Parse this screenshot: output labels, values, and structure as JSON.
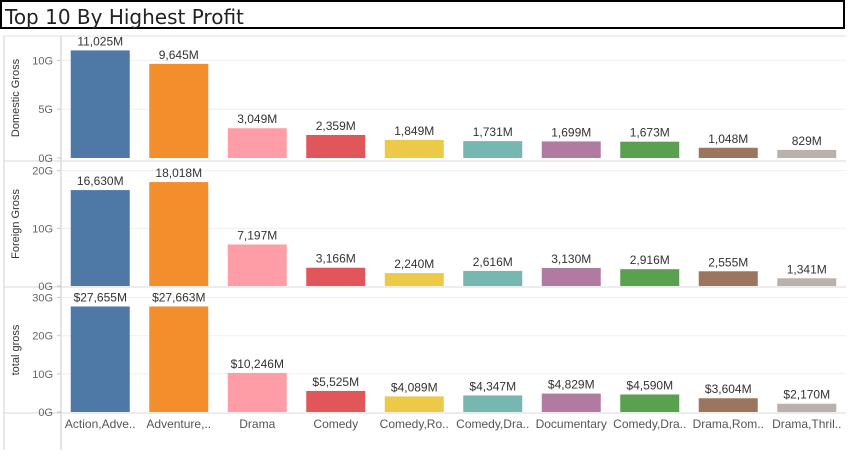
{
  "title": "Top 10 By Highest Profit",
  "chart_data": {
    "type": "bar",
    "categories": [
      "Action,Adve..",
      "Adventure,..",
      "Drama",
      "Comedy",
      "Comedy,Ro..",
      "Comedy,Dra..",
      "Documentary",
      "Comedy,Dra..",
      "Drama,Rom..",
      "Drama,Thril.."
    ],
    "colors": [
      "#4e79a7",
      "#f28e2b",
      "#ff9da7",
      "#e15759",
      "#edc948",
      "#76b7b2",
      "#b07aa1",
      "#59a14f",
      "#9c755f",
      "#bab0ac"
    ],
    "panels": [
      {
        "ylabel": "Domestic Gross",
        "ylim": [
          0,
          12500
        ],
        "ticks": [
          {
            "v": 0,
            "label": "0G"
          },
          {
            "v": 5000,
            "label": "5G"
          },
          {
            "v": 10000,
            "label": "10G"
          }
        ],
        "values": [
          11025,
          9645,
          3049,
          2359,
          1849,
          1731,
          1699,
          1673,
          1048,
          829
        ],
        "labels": [
          "11,025M",
          "9,645M",
          "3,049M",
          "2,359M",
          "1,849M",
          "1,731M",
          "1,699M",
          "1,673M",
          "1,048M",
          "829M"
        ]
      },
      {
        "ylabel": "Foreign Gross",
        "ylim": [
          0,
          21500
        ],
        "ticks": [
          {
            "v": 0,
            "label": "0G"
          },
          {
            "v": 10000,
            "label": "10G"
          },
          {
            "v": 20000,
            "label": "20G"
          }
        ],
        "values": [
          16630,
          18018,
          7197,
          3166,
          2240,
          2616,
          3130,
          2916,
          2555,
          1341
        ],
        "labels": [
          "16,630M",
          "18,018M",
          "7,197M",
          "3,166M",
          "2,240M",
          "2,616M",
          "3,130M",
          "2,916M",
          "2,555M",
          "1,341M"
        ]
      },
      {
        "ylabel": "total gross",
        "ylim": [
          0,
          32500
        ],
        "ticks": [
          {
            "v": 0,
            "label": "0G"
          },
          {
            "v": 10000,
            "label": "10G"
          },
          {
            "v": 20000,
            "label": "20G"
          },
          {
            "v": 30000,
            "label": "30G"
          }
        ],
        "values": [
          27655,
          27663,
          10246,
          5525,
          4089,
          4347,
          4829,
          4590,
          3604,
          2170
        ],
        "labels": [
          "$27,655M",
          "$27,663M",
          "$10,246M",
          "$5,525M",
          "$4,089M",
          "$4,347M",
          "$4,829M",
          "$4,590M",
          "$3,604M",
          "$2,170M"
        ]
      }
    ]
  }
}
